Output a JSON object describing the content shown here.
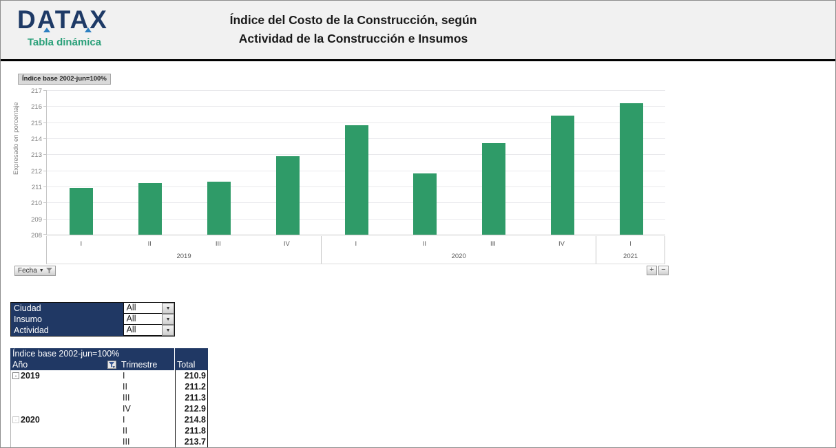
{
  "header": {
    "logo_text": "DATAX",
    "logo_subtitle": "Tabla dinámica",
    "title_line1": "Índice del Costo de la Construcción, según",
    "title_line2": "Actividad de la Construcción e Insumos"
  },
  "chart": {
    "index_base_label": "Índice base 2002-jun=100%",
    "y_axis_label": "Expresado en porcentaje",
    "field_button_label": "Fecha",
    "zoom_in_label": "+",
    "zoom_out_label": "−"
  },
  "chart_data": {
    "type": "bar",
    "title": "Índice del Costo de la Construcción, según Actividad de la Construcción e Insumos",
    "ylabel": "Expresado en porcentaje",
    "ylim": [
      208,
      217
    ],
    "y_tick_step": 1,
    "grid": true,
    "bar_color": "#2f9b68",
    "legend": "none",
    "groups": [
      {
        "year": "2019",
        "quarters": [
          "I",
          "II",
          "III",
          "IV"
        ],
        "values": [
          210.9,
          211.2,
          211.3,
          212.9
        ]
      },
      {
        "year": "2020",
        "quarters": [
          "I",
          "II",
          "III",
          "IV"
        ],
        "values": [
          214.8,
          211.8,
          213.7,
          215.4
        ]
      },
      {
        "year": "2021",
        "quarters": [
          "I"
        ],
        "values": [
          216.2
        ]
      }
    ]
  },
  "filters": {
    "rows": [
      {
        "label": "Ciudad",
        "value": "All"
      },
      {
        "label": "Insumo",
        "value": "All"
      },
      {
        "label": "Actividad",
        "value": "All"
      }
    ]
  },
  "pivot_table": {
    "title": "Índice base 2002-jun=100%",
    "col_year": "Año",
    "col_quarter": "Trimestre",
    "col_total": "Total",
    "rows": [
      {
        "year": "2019",
        "collapse": "minus",
        "quarter": "I",
        "total": "210.9"
      },
      {
        "year": "",
        "collapse": "",
        "quarter": "II",
        "total": "211.2"
      },
      {
        "year": "",
        "collapse": "",
        "quarter": "III",
        "total": "211.3"
      },
      {
        "year": "",
        "collapse": "",
        "quarter": "IV",
        "total": "212.9"
      },
      {
        "year": "2020",
        "collapse": "faint",
        "quarter": "I",
        "total": "214.8"
      },
      {
        "year": "",
        "collapse": "",
        "quarter": "II",
        "total": "211.8"
      },
      {
        "year": "",
        "collapse": "",
        "quarter": "III",
        "total": "213.7"
      }
    ]
  },
  "colors": {
    "navy": "#203864",
    "bar_green": "#2f9b68",
    "logo_navy": "#1e3a66",
    "logo_green": "#2aa079",
    "header_bg": "#f1f1f1"
  }
}
